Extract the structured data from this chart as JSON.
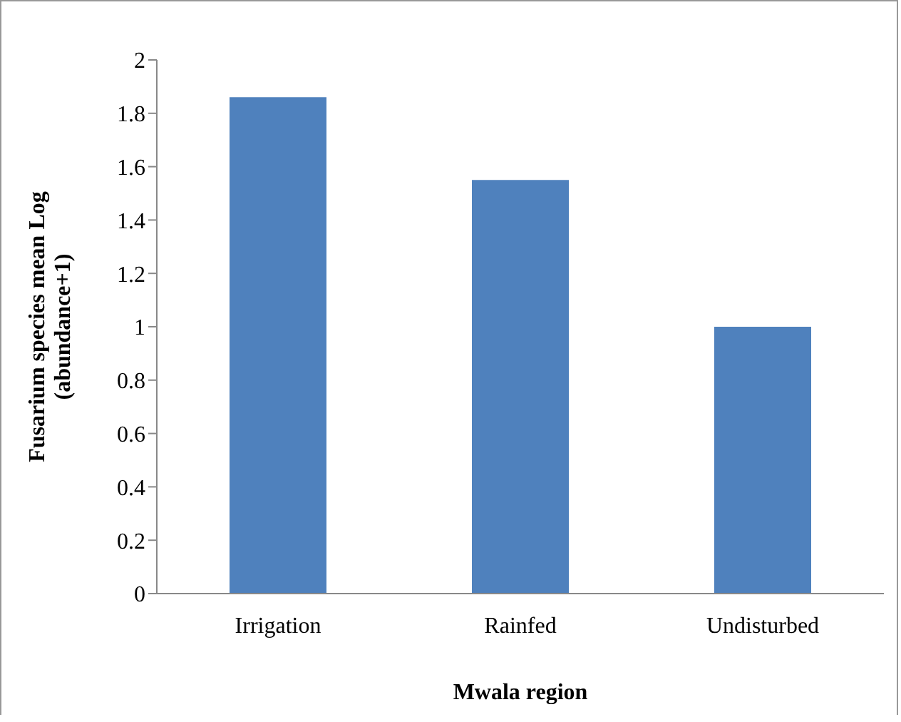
{
  "chart_data": {
    "type": "bar",
    "xlabel": "Mwala region",
    "ylabel": "Fusarium  species mean Log (abundance+1)",
    "categories": [
      "Irrigation",
      "Rainfed",
      "Undisturbed"
    ],
    "values": [
      1.86,
      1.55,
      1.0
    ],
    "color": "#4f81bd",
    "ylim": [
      0,
      2
    ],
    "yticks": [
      0,
      0.2,
      0.4,
      0.6,
      0.8,
      1,
      1.2,
      1.4,
      1.6,
      1.8,
      2
    ],
    "grid": false,
    "legend": false
  }
}
